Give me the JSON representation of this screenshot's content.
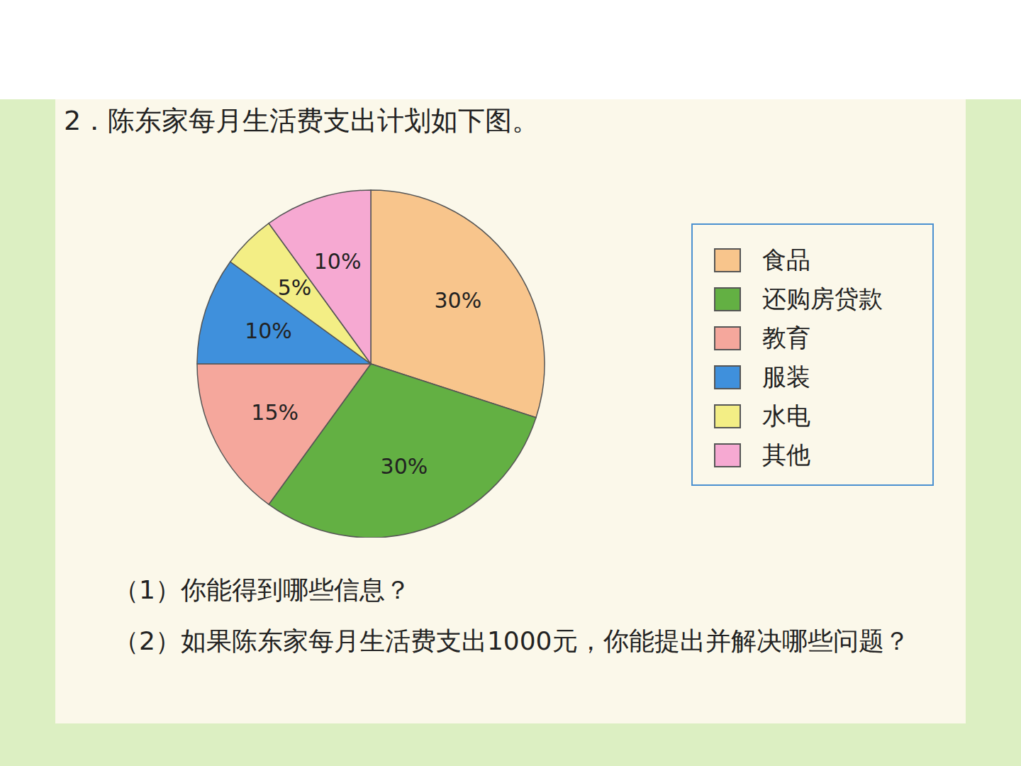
{
  "chart_data": {
    "type": "pie",
    "title": "2．陈东家每月生活费支出计划如下图。",
    "categories": [
      "食品",
      "还购房贷款",
      "教育",
      "服装",
      "水电",
      "其他"
    ],
    "values": [
      30,
      30,
      15,
      10,
      5,
      10
    ],
    "value_labels": [
      "30%",
      "30%",
      "15%",
      "10%",
      "5%",
      "10%"
    ],
    "colors": [
      "#f8c58c",
      "#63b043",
      "#f5a79c",
      "#3f90dc",
      "#f3ee85",
      "#f6a9d2"
    ],
    "data_labels": true,
    "legend": "right",
    "annotations": [
      "（1）你能得到哪些信息？",
      "（2）如果陈东家每月生活费支出1000元，你能提出并解决哪些问题？"
    ]
  }
}
